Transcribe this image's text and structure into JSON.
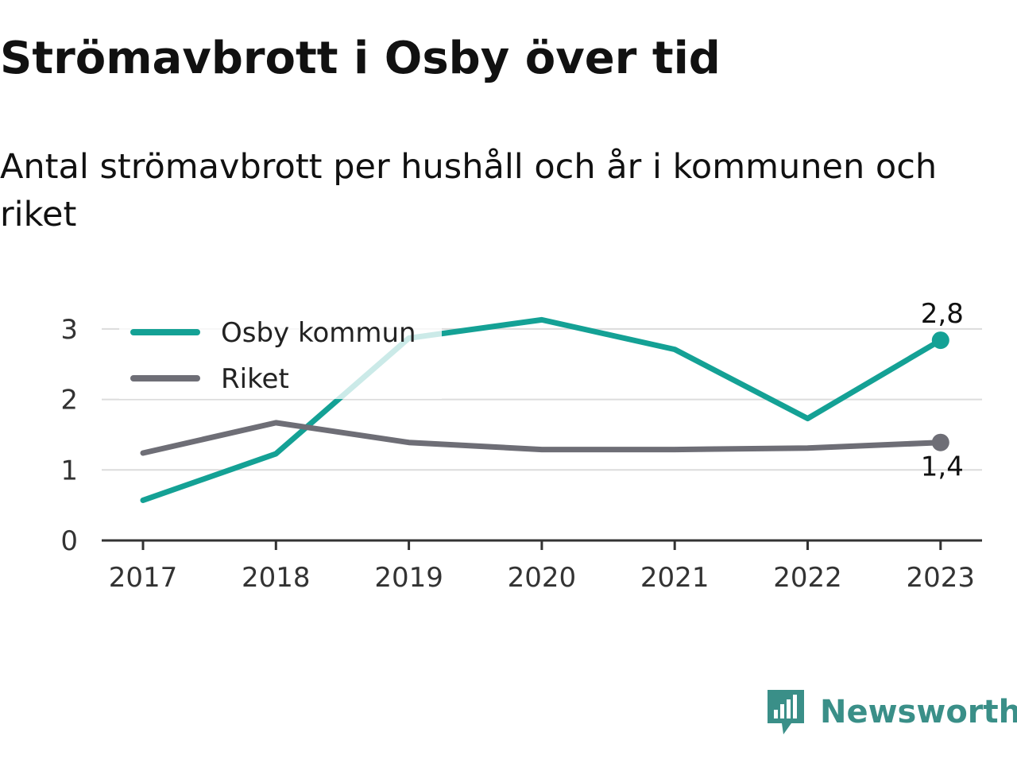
{
  "title": "Strömavbrott i Osby över tid",
  "subtitle": "Antal strömavbrott per hushåll och år i kommunen och riket",
  "brand": {
    "name": "Newsworthy",
    "color": "#3a8f88"
  },
  "chart_data": {
    "type": "line",
    "title": "Strömavbrott i Osby över tid",
    "subtitle": "Antal strömavbrott per hushåll och år i kommunen och riket",
    "xlabel": "",
    "ylabel": "",
    "categories": [
      "2017",
      "2018",
      "2019",
      "2020",
      "2021",
      "2022",
      "2023"
    ],
    "ylim": [
      0,
      3.2
    ],
    "yticks": [
      "0",
      "1",
      "2",
      "3"
    ],
    "grid": true,
    "legend_position": "top-left",
    "series": [
      {
        "name": "Osby kommun",
        "color": "#14a195",
        "values": [
          0.57,
          1.23,
          2.87,
          3.13,
          2.71,
          1.73,
          2.84
        ],
        "end_label": "2,8"
      },
      {
        "name": "Riket",
        "color": "#6e6e76",
        "values": [
          1.24,
          1.67,
          1.39,
          1.29,
          1.29,
          1.31,
          1.39
        ],
        "end_label": "1,4"
      }
    ]
  }
}
